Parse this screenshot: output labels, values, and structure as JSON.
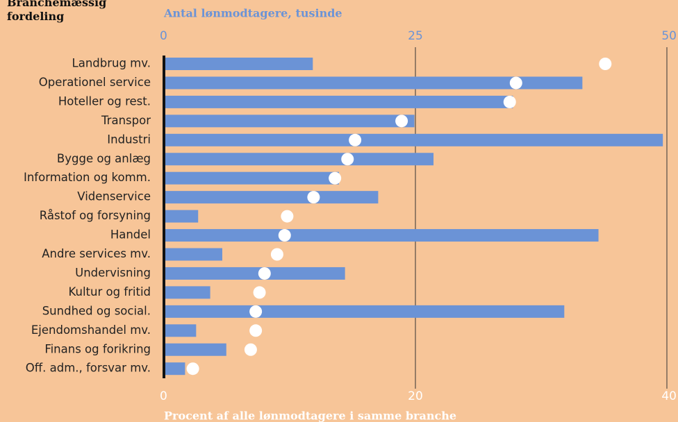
{
  "chart_data": {
    "type": "bar",
    "title": "Branchemæssig fordeling",
    "xlabel": "Antal lønmodtagere, tusinde",
    "x2label": "Procent af alle lønmodtagere i samme branche",
    "categories": [
      "Landbrug mv.",
      "Operationel service",
      "Hoteller og rest.",
      "Transpor",
      "Industri",
      "Bygge og anlæg",
      "Information og komm.",
      "Videnservice",
      "Råstof og forsyning",
      "Handel",
      "Andre services mv.",
      "Undervisning",
      "Kultur og fritid",
      "Sundhed og social.",
      "Ejendomshandel mv.",
      "Finans og forikring",
      "Off. adm., forsvar mv."
    ],
    "series": [
      {
        "type": "bar",
        "axis": "x",
        "color": "#6b93d6",
        "values": [
          14.8,
          41.6,
          34.7,
          24.9,
          49.6,
          26.8,
          17.4,
          21.3,
          3.4,
          43.2,
          5.8,
          18.0,
          4.6,
          39.8,
          3.2,
          6.2,
          2.1
        ]
      },
      {
        "type": "dot",
        "axis": "x2",
        "color": "#ffffff",
        "values": [
          35.1,
          28.0,
          27.5,
          18.9,
          15.2,
          14.6,
          13.6,
          11.9,
          9.8,
          9.6,
          9.0,
          8.0,
          7.6,
          7.3,
          7.3,
          6.9,
          2.3
        ]
      }
    ],
    "xlim": [
      0,
      50
    ],
    "xticks": [
      0,
      25,
      50
    ],
    "x2lim": [
      0,
      40
    ],
    "x2ticks": [
      0,
      20,
      40
    ],
    "grid": true
  }
}
